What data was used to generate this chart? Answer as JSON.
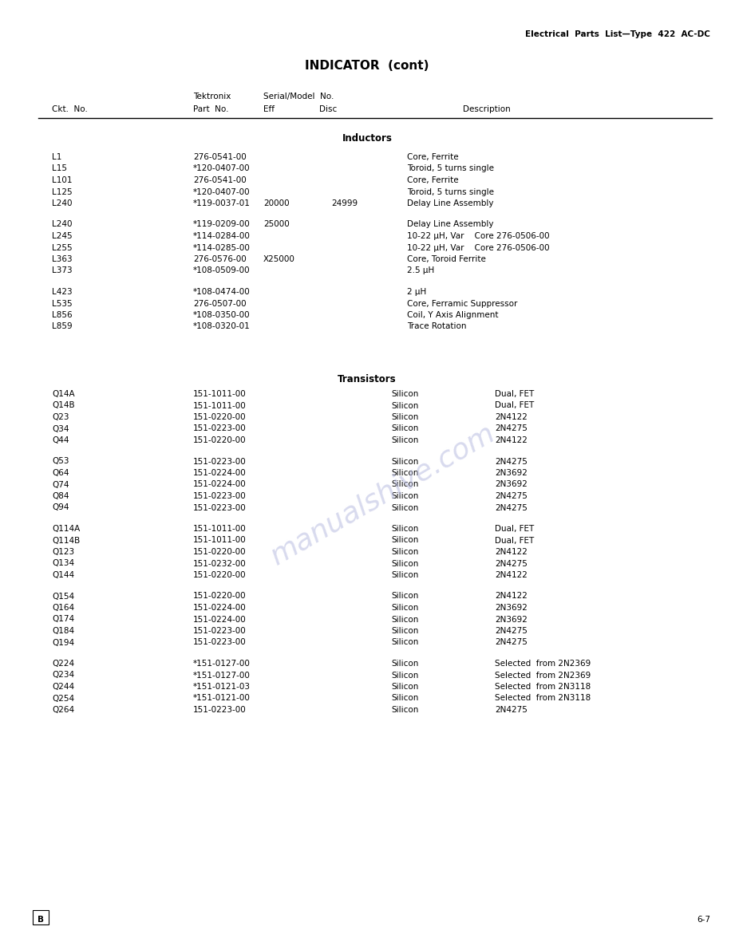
{
  "page_header_right": "Electrical  Parts  List—Type  422  AC-DC",
  "page_title": "INDICATOR  (cont)",
  "section1_title": "Inductors",
  "section2_title": "Transistors",
  "inductors_group1": [
    {
      "ckt": "L1",
      "part": "276-0541-00",
      "eff": "",
      "disc": "",
      "desc": "Core, Ferrite"
    },
    {
      "ckt": "L15",
      "part": "*120-0407-00",
      "eff": "",
      "disc": "",
      "desc": "Toroid, 5 turns single"
    },
    {
      "ckt": "L101",
      "part": "276-0541-00",
      "eff": "",
      "disc": "",
      "desc": "Core, Ferrite"
    },
    {
      "ckt": "L125",
      "part": "*120-0407-00",
      "eff": "",
      "disc": "",
      "desc": "Toroid, 5 turns single"
    },
    {
      "ckt": "L240",
      "part": "*119-0037-01",
      "eff": "20000",
      "disc": "24999",
      "desc": "Delay Line Assembly"
    }
  ],
  "inductors_group2": [
    {
      "ckt": "L240",
      "part": "*119-0209-00",
      "eff": "25000",
      "disc": "",
      "desc": "Delay Line Assembly"
    },
    {
      "ckt": "L245",
      "part": "*114-0284-00",
      "eff": "",
      "disc": "",
      "desc": "10-22 μH, Var    Core 276-0506-00"
    },
    {
      "ckt": "L255",
      "part": "*114-0285-00",
      "eff": "",
      "disc": "",
      "desc": "10-22 μH, Var    Core 276-0506-00"
    },
    {
      "ckt": "L363",
      "part": "276-0576-00",
      "eff": "X25000",
      "disc": "",
      "desc": "Core, Toroid Ferrite"
    },
    {
      "ckt": "L373",
      "part": "*108-0509-00",
      "eff": "",
      "disc": "",
      "desc": "2.5 μH"
    }
  ],
  "inductors_group3": [
    {
      "ckt": "L423",
      "part": "*108-0474-00",
      "eff": "",
      "disc": "",
      "desc": "2 μH"
    },
    {
      "ckt": "L535",
      "part": "276-0507-00",
      "eff": "",
      "disc": "",
      "desc": "Core, Ferramic Suppressor"
    },
    {
      "ckt": "L856",
      "part": "*108-0350-00",
      "eff": "",
      "disc": "",
      "desc": "Coil, Y Axis Alignment"
    },
    {
      "ckt": "L859",
      "part": "*108-0320-01",
      "eff": "",
      "disc": "",
      "desc": "Trace Rotation"
    }
  ],
  "transistors_group1": [
    {
      "ckt": "Q14A",
      "part": "151-1011-00",
      "mat": "Silicon",
      "desc": "Dual, FET"
    },
    {
      "ckt": "Q14B",
      "part": "151-1011-00",
      "mat": "Silicon",
      "desc": "Dual, FET"
    },
    {
      "ckt": "Q23",
      "part": "151-0220-00",
      "mat": "Silicon",
      "desc": "2N4122"
    },
    {
      "ckt": "Q34",
      "part": "151-0223-00",
      "mat": "Silicon",
      "desc": "2N4275"
    },
    {
      "ckt": "Q44",
      "part": "151-0220-00",
      "mat": "Silicon",
      "desc": "2N4122"
    }
  ],
  "transistors_group2": [
    {
      "ckt": "Q53",
      "part": "151-0223-00",
      "mat": "Silicon",
      "desc": "2N4275"
    },
    {
      "ckt": "Q64",
      "part": "151-0224-00",
      "mat": "Silicon",
      "desc": "2N3692"
    },
    {
      "ckt": "Q74",
      "part": "151-0224-00",
      "mat": "Silicon",
      "desc": "2N3692"
    },
    {
      "ckt": "Q84",
      "part": "151-0223-00",
      "mat": "Silicon",
      "desc": "2N4275"
    },
    {
      "ckt": "Q94",
      "part": "151-0223-00",
      "mat": "Silicon",
      "desc": "2N4275"
    }
  ],
  "transistors_group3": [
    {
      "ckt": "Q114A",
      "part": "151-1011-00",
      "mat": "Silicon",
      "desc": "Dual, FET"
    },
    {
      "ckt": "Q114B",
      "part": "151-1011-00",
      "mat": "Silicon",
      "desc": "Dual, FET"
    },
    {
      "ckt": "Q123",
      "part": "151-0220-00",
      "mat": "Silicon",
      "desc": "2N4122"
    },
    {
      "ckt": "Q134",
      "part": "151-0232-00",
      "mat": "Silicon",
      "desc": "2N4275"
    },
    {
      "ckt": "Q144",
      "part": "151-0220-00",
      "mat": "Silicon",
      "desc": "2N4122"
    }
  ],
  "transistors_group4": [
    {
      "ckt": "Q154",
      "part": "151-0220-00",
      "mat": "Silicon",
      "desc": "2N4122"
    },
    {
      "ckt": "Q164",
      "part": "151-0224-00",
      "mat": "Silicon",
      "desc": "2N3692"
    },
    {
      "ckt": "Q174",
      "part": "151-0224-00",
      "mat": "Silicon",
      "desc": "2N3692"
    },
    {
      "ckt": "Q184",
      "part": "151-0223-00",
      "mat": "Silicon",
      "desc": "2N4275"
    },
    {
      "ckt": "Q194",
      "part": "151-0223-00",
      "mat": "Silicon",
      "desc": "2N4275"
    }
  ],
  "transistors_group5": [
    {
      "ckt": "Q224",
      "part": "*151-0127-00",
      "mat": "Silicon",
      "desc": "Selected  from 2N2369"
    },
    {
      "ckt": "Q234",
      "part": "*151-0127-00",
      "mat": "Silicon",
      "desc": "Selected  from 2N2369"
    },
    {
      "ckt": "Q244",
      "part": "*151-0121-03",
      "mat": "Silicon",
      "desc": "Selected  from 2N3118"
    },
    {
      "ckt": "Q254",
      "part": "*151-0121-00",
      "mat": "Silicon",
      "desc": "Selected  from 2N3118"
    },
    {
      "ckt": "Q264",
      "part": "151-0223-00",
      "mat": "Silicon",
      "desc": "2N4275"
    }
  ],
  "page_number": "6-7",
  "page_box": "B",
  "bg_color": "#ffffff",
  "text_color": "#000000",
  "watermark_text": "manualshive.com",
  "watermark_color": "#b8bce0"
}
